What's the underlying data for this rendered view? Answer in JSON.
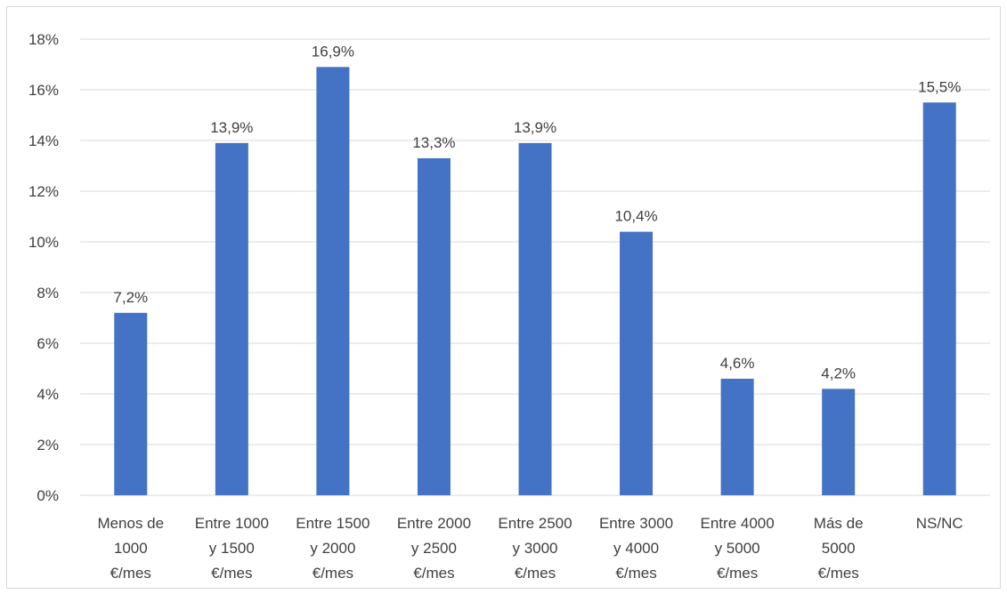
{
  "chart_data": {
    "type": "bar",
    "title": "",
    "xlabel": "",
    "ylabel": "",
    "ylim": [
      0,
      18
    ],
    "y_ticks": [
      "0%",
      "2%",
      "4%",
      "6%",
      "8%",
      "10%",
      "12%",
      "14%",
      "16%",
      "18%"
    ],
    "grid": true,
    "legend": "none",
    "bar_color": "#4472c4",
    "categories": [
      [
        "Menos de",
        "1000",
        "€/mes"
      ],
      [
        "Entre 1000",
        "y 1500",
        "€/mes"
      ],
      [
        "Entre 1500",
        "y 2000",
        "€/mes"
      ],
      [
        "Entre 2000",
        "y 2500",
        "€/mes"
      ],
      [
        "Entre 2500",
        "y 3000",
        "€/mes"
      ],
      [
        "Entre 3000",
        "y 4000",
        "€/mes"
      ],
      [
        "Entre 4000",
        "y 5000",
        "€/mes"
      ],
      [
        "Más de",
        "5000",
        "€/mes"
      ],
      [
        "NS/NC"
      ]
    ],
    "values": [
      7.2,
      13.9,
      16.9,
      13.3,
      13.9,
      10.4,
      4.6,
      4.2,
      15.5
    ],
    "data_labels": [
      "7,2%",
      "13,9%",
      "16,9%",
      "13,3%",
      "13,9%",
      "10,4%",
      "4,6%",
      "4,2%",
      "15,5%"
    ]
  }
}
